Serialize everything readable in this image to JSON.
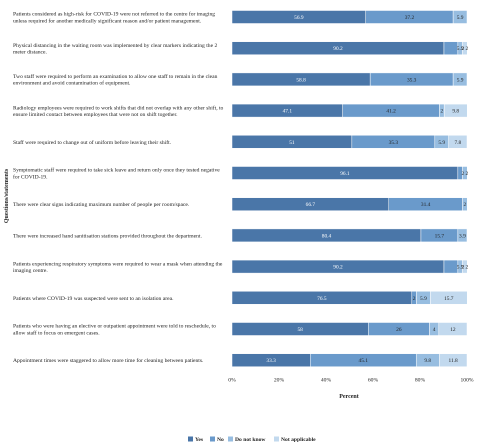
{
  "chart_data": {
    "type": "bar",
    "orientation": "horizontal",
    "stacked": true,
    "xlabel": "Percent",
    "ylabel": "Questions/statements",
    "xlim": [
      0,
      100
    ],
    "x_ticks": [
      "0%",
      "20%",
      "40%",
      "60%",
      "80%",
      "100%"
    ],
    "categories": [
      "Patients considered as high-risk for COVID-19 were not referred to the centre for imaging unless required for another medically significant reason and/or patient management.",
      "Physical distancing in the waiting room was implemented by clear markers indicating the 2 meter distance.",
      "Two staff were required to perform an examination to allow one staff to remain in the clean environment and avoid contamination of equipment.",
      "Radiology employees were required to work shifts that did not overlap with any other shift, to ensure limited contact between employees that were not on shift together.",
      "Staff were required to change out of uniform before leaving their shift.",
      "Symptomatic staff were required to take sick leave and return only once they tested negative for COVID-19.",
      "There were clear signs indicating maximum number of people per room/space.",
      "There were increased hand sanitisation stations provided throughout the department.",
      "Patients experiencing respiratory symptoms were required to wear a mask when attending the imaging centre.",
      "Patients where COVID-19 was suspected were sent to an isolation area.",
      "Patients who were having an elective or outpatient appointment were told to reschedule, to allow staff to focus on emergent cases.",
      "Appointment times were staggered to allow more time for cleaning between patients."
    ],
    "series": [
      {
        "name": "Yes",
        "color": "#4a76a8",
        "values": [
          56.9,
          90.2,
          58.8,
          47.1,
          51,
          96.1,
          66.7,
          80.4,
          90.2,
          76.5,
          58,
          33.3
        ]
      },
      {
        "name": "No",
        "color": "#6a9acb",
        "values": [
          37.2,
          5.9,
          35.3,
          41.2,
          35.3,
          2,
          31.4,
          15.7,
          5.9,
          2,
          26,
          45.1
        ]
      },
      {
        "name": "Do not know",
        "color": "#97bde0",
        "values": [
          5.9,
          2,
          5.9,
          2,
          5.9,
          2,
          2,
          3.9,
          2,
          5.9,
          4,
          9.8
        ]
      },
      {
        "name": "Not applicable",
        "color": "#c2d9ee",
        "values": [
          0,
          2,
          0,
          9.8,
          7.8,
          0,
          0,
          0,
          2,
          15.7,
          12,
          11.8
        ]
      }
    ],
    "value_labels": [
      [
        "56.9",
        "37.2",
        "5.9",
        ""
      ],
      [
        "90.2",
        "",
        "5.9",
        "2 2"
      ],
      [
        "58.8",
        "35.3",
        "5.9",
        ""
      ],
      [
        "47.1",
        "41.2",
        "2",
        "9.8"
      ],
      [
        "51",
        "35.3",
        "5.9",
        "7.8"
      ],
      [
        "96.1",
        "",
        "2 2",
        ""
      ],
      [
        "66.7",
        "31.4",
        "2",
        ""
      ],
      [
        "80.4",
        "15.7",
        "3.9",
        ""
      ],
      [
        "90.2",
        "",
        "5.9",
        "2 2"
      ],
      [
        "76.5",
        "2",
        "5.9",
        "15.7"
      ],
      [
        "58",
        "26",
        "4",
        "12"
      ],
      [
        "33.3",
        "45.1",
        "9.8",
        "11.8"
      ]
    ],
    "legend_position": "bottom",
    "grid": false
  }
}
